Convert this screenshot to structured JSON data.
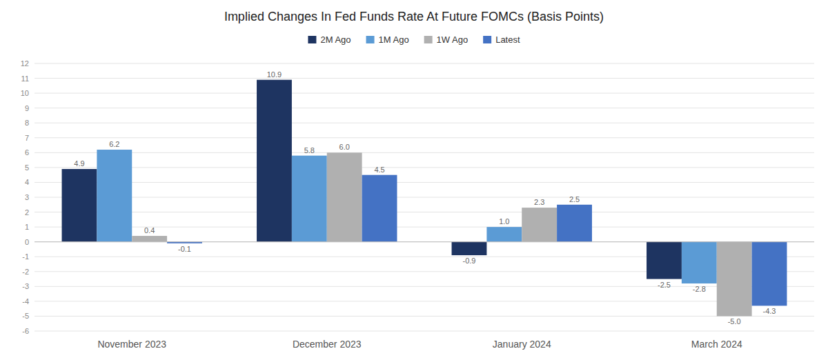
{
  "chart_data": {
    "type": "bar",
    "title": "Implied Changes In Fed Funds Rate At Future FOMCs (Basis Points)",
    "categories": [
      "November 2023",
      "December 2023",
      "January 2024",
      "March 2024"
    ],
    "series": [
      {
        "name": "2M Ago",
        "color": "#1e3461",
        "values": [
          4.9,
          10.9,
          -0.9,
          -2.5
        ],
        "value_labels": [
          "4.9",
          "10.9",
          "-0.9",
          "-2.5"
        ]
      },
      {
        "name": "1M Ago",
        "color": "#5b9bd5",
        "values": [
          6.2,
          5.8,
          1.0,
          -2.8
        ],
        "value_labels": [
          "6.2",
          "5.8",
          "1.0",
          "-2.8"
        ]
      },
      {
        "name": "1W Ago",
        "color": "#b0b0b0",
        "values": [
          0.4,
          6.0,
          2.3,
          -5.0
        ],
        "value_labels": [
          "0.4",
          "6.0",
          "2.3",
          "-5.0"
        ]
      },
      {
        "name": "Latest",
        "color": "#4472c4",
        "values": [
          -0.1,
          4.5,
          2.5,
          -4.3
        ],
        "value_labels": [
          "-0.1",
          "4.5",
          "2.5",
          "-4.3"
        ]
      }
    ],
    "ylim": [
      -6,
      12
    ],
    "yticks": [
      -6,
      -5,
      -4,
      -3,
      -2,
      -1,
      0,
      1,
      2,
      3,
      4,
      5,
      6,
      7,
      8,
      9,
      10,
      11,
      12
    ],
    "grid": true,
    "legend": "top",
    "data_labels": true
  }
}
